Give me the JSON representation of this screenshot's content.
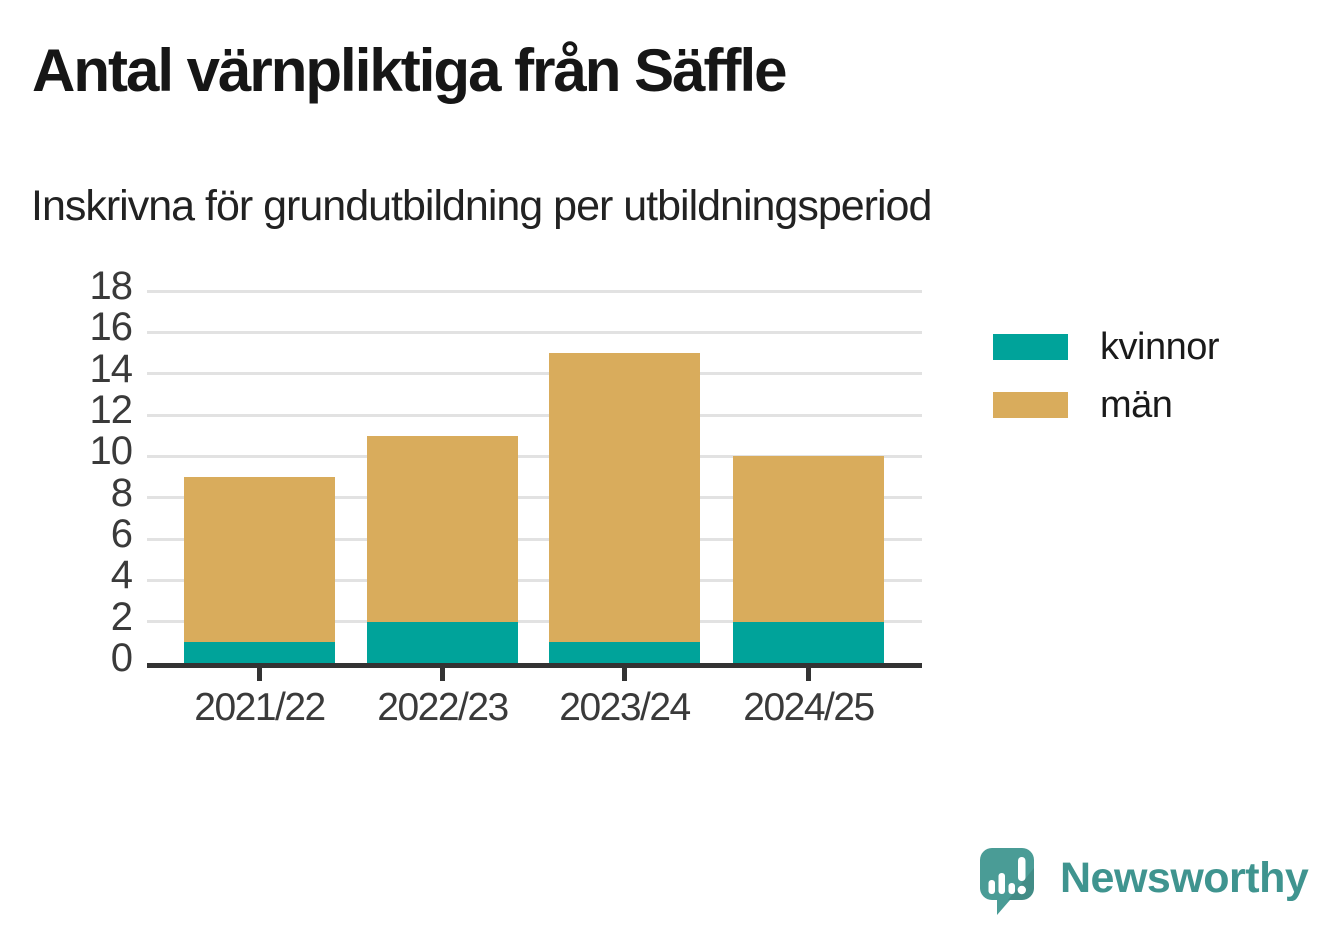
{
  "title": "Antal värnpliktiga från Säffle",
  "subtitle": "Inskrivna för grundutbildning per utbildningsperiod",
  "legend": [
    {
      "label": "kvinnor",
      "color": "#00A39A"
    },
    {
      "label": "män",
      "color": "#D9AC5C"
    }
  ],
  "branding": {
    "logo_text": "Newsworthy",
    "logo_icon": "newsworthy-speech-bubble-chart-icon",
    "logo_color": "#4A9C96",
    "logo_text_color": "#3F948F"
  },
  "colors": {
    "kvinnor": "#00A39A",
    "man": "#D9AC5C",
    "axis": "#333333",
    "gridline": "#E2E2E2",
    "title_text": "#161616",
    "tick_text": "#3A3A3A"
  },
  "chart_data": {
    "type": "bar",
    "stacked": true,
    "title": "Antal värnpliktiga från Säffle",
    "subtitle": "Inskrivna för grundutbildning per utbildningsperiod",
    "categories": [
      "2021/22",
      "2022/23",
      "2023/24",
      "2024/25"
    ],
    "series": [
      {
        "name": "kvinnor",
        "color": "#00A39A",
        "values": [
          1,
          2,
          1,
          2
        ]
      },
      {
        "name": "män",
        "color": "#D9AC5C",
        "values": [
          8,
          9,
          14,
          8
        ]
      }
    ],
    "totals": [
      9,
      11,
      15,
      10
    ],
    "xlabel": "",
    "ylabel": "",
    "ylim": [
      0,
      18
    ],
    "yticks": [
      0,
      2,
      4,
      6,
      8,
      10,
      12,
      14,
      16,
      18
    ],
    "grid": true,
    "legend_position": "right"
  }
}
